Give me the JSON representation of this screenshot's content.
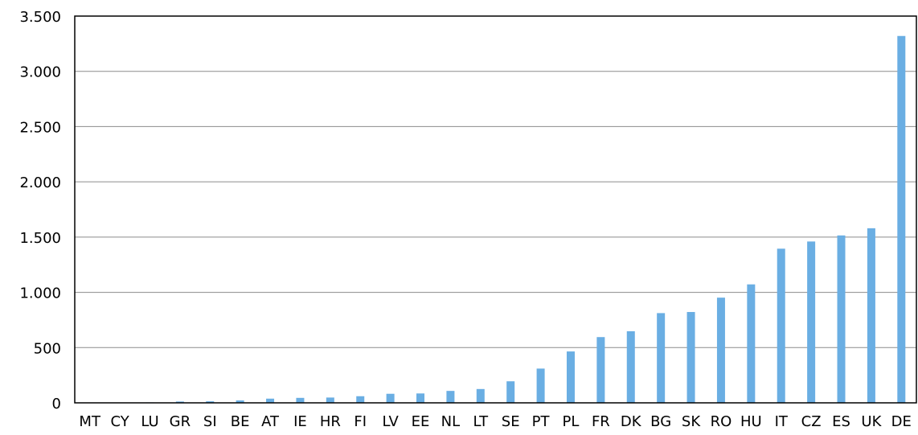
{
  "chart_data": {
    "type": "bar",
    "title": "",
    "xlabel": "",
    "ylabel": "",
    "ylim": [
      0,
      3500
    ],
    "yticks": [
      0,
      500,
      1000,
      1500,
      2000,
      2500,
      3000,
      3500
    ],
    "ytick_labels": [
      "0",
      "500",
      "1.000",
      "1.500",
      "2.000",
      "2.500",
      "3.000",
      "3.500"
    ],
    "grid": true,
    "legend": "none",
    "bar_color": "#6aaee3",
    "categories": [
      "MT",
      "CY",
      "LU",
      "GR",
      "SI",
      "BE",
      "AT",
      "IE",
      "HR",
      "FI",
      "LV",
      "EE",
      "NL",
      "LT",
      "SE",
      "PT",
      "PL",
      "FR",
      "DK",
      "BG",
      "SK",
      "RO",
      "HU",
      "IT",
      "CZ",
      "ES",
      "UK",
      "DE"
    ],
    "values": [
      2,
      3,
      4,
      12,
      14,
      22,
      38,
      45,
      48,
      60,
      82,
      85,
      108,
      125,
      195,
      310,
      465,
      595,
      648,
      812,
      822,
      952,
      1072,
      1395,
      1460,
      1515,
      1580,
      3320
    ]
  }
}
